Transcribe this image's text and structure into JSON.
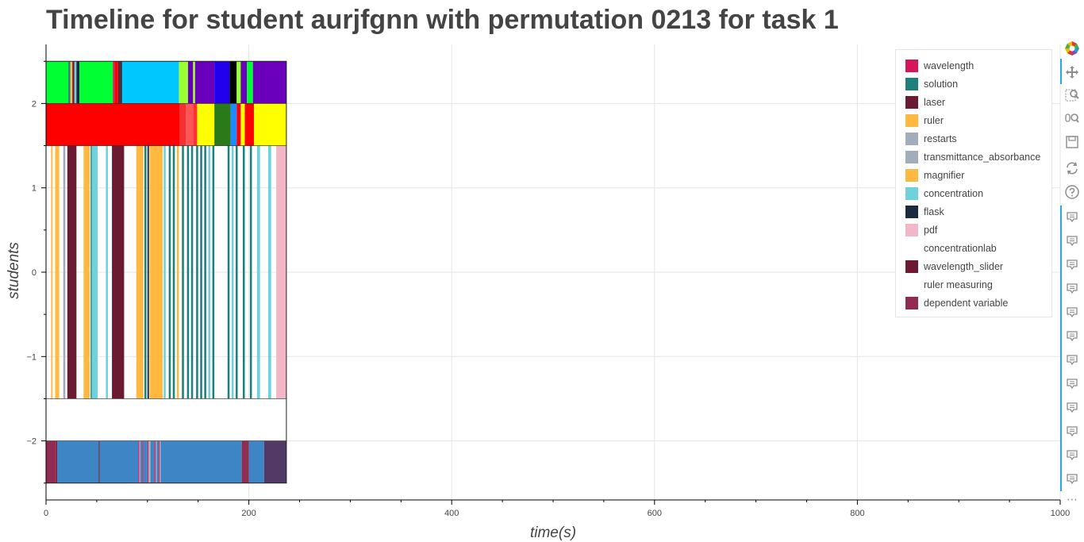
{
  "chart_data": {
    "type": "timeline",
    "title": "Timeline for student aurjfgnn with permutation 0213 for task 1",
    "xlabel": "time(s)",
    "ylabel": "students",
    "xlim": [
      0,
      1000
    ],
    "ylim": [
      -2.7,
      2.7
    ],
    "x_ticks": [
      0,
      200,
      400,
      600,
      800,
      1000
    ],
    "y_ticks": [
      -2,
      -1,
      0,
      1,
      2
    ],
    "y_tick_labels": [
      "−2",
      "−1",
      "0",
      "1",
      "2"
    ],
    "x_tick_labels": [
      "0",
      "200",
      "400",
      "600",
      "800",
      "1000"
    ],
    "grid": true,
    "legend_position": "top-right",
    "legend": [
      {
        "label": "wavelength",
        "color": "#d6165a"
      },
      {
        "label": "solution",
        "color": "#1f7f7a"
      },
      {
        "label": "laser",
        "color": "#6a1b32"
      },
      {
        "label": "ruler",
        "color": "#ffb840"
      },
      {
        "label": "restarts",
        "color": "#a1adba"
      },
      {
        "label": "transmittance_absorbance",
        "color": "#a1adba"
      },
      {
        "label": "magnifier",
        "color": "#ffb840"
      },
      {
        "label": "concentration",
        "color": "#70d0dc"
      },
      {
        "label": "flask",
        "color": "#1a2b40"
      },
      {
        "label": "pdf",
        "color": "#f1b7c6"
      },
      {
        "label": "concentrationlab",
        "color": "#ffffff"
      },
      {
        "label": "wavelength_slider",
        "color": "#6a1b32"
      },
      {
        "label": "ruler measuring",
        "color": "#ffffff"
      },
      {
        "label": "dependent variable",
        "color": "#912b52"
      }
    ],
    "rows": [
      {
        "y_center": 2.25,
        "height": 0.5,
        "segments": [
          [
            0,
            22,
            "#00ff33"
          ],
          [
            22,
            24,
            "#1f7f7a"
          ],
          [
            24,
            26,
            "#ffb840"
          ],
          [
            26,
            28,
            "#6a1b32"
          ],
          [
            28,
            30,
            "#70d0dc"
          ],
          [
            30,
            33,
            "#1a2b40"
          ],
          [
            33,
            66,
            "#00ff33"
          ],
          [
            66,
            68,
            "#d6165a"
          ],
          [
            68,
            71,
            "#ff0000"
          ],
          [
            71,
            73,
            "#6a1b32"
          ],
          [
            73,
            75,
            "#1a2b40"
          ],
          [
            75,
            131,
            "#00c8ff"
          ],
          [
            131,
            140,
            "#99ff33"
          ],
          [
            140,
            145,
            "#6a00bb"
          ],
          [
            145,
            147,
            "#99ff33"
          ],
          [
            147,
            166,
            "#6a00bb"
          ],
          [
            166,
            181,
            "#2200ee"
          ],
          [
            181,
            188,
            "#000000"
          ],
          [
            188,
            192,
            "#99ff33"
          ],
          [
            192,
            198,
            "#6a00bb"
          ],
          [
            198,
            204,
            "#00ff33"
          ],
          [
            204,
            237,
            "#6a00bb"
          ]
        ]
      },
      {
        "y_center": 1.75,
        "height": 0.5,
        "segments": [
          [
            0,
            132,
            "#ff0000"
          ],
          [
            132,
            138,
            "#f53030"
          ],
          [
            138,
            145,
            "#ff5555"
          ],
          [
            145,
            149,
            "#ff3030"
          ],
          [
            149,
            166,
            "#ffff00"
          ],
          [
            166,
            182,
            "#2a7a1a"
          ],
          [
            182,
            188,
            "#2288ff"
          ],
          [
            188,
            192,
            "#ff0000"
          ],
          [
            192,
            196,
            "#ffff00"
          ],
          [
            196,
            205,
            "#ff0000"
          ],
          [
            205,
            237,
            "#ffff00"
          ]
        ]
      },
      {
        "y_center": 0,
        "height": 3,
        "segments": [
          [
            5,
            6.5,
            "#ffb840"
          ],
          [
            9,
            13,
            "#ffb840"
          ],
          [
            17,
            19,
            "#a1adba"
          ],
          [
            21,
            30,
            "#6a1b32"
          ],
          [
            37,
            43,
            "#ffb840"
          ],
          [
            44,
            45,
            "#1f7f7a"
          ],
          [
            45,
            51,
            "#70d0dc"
          ],
          [
            59,
            61,
            "#70d0dc"
          ],
          [
            65,
            77,
            "#6a1b32"
          ],
          [
            89,
            96,
            "#ffb840"
          ],
          [
            97,
            99,
            "#1f7f7a"
          ],
          [
            100,
            101.5,
            "#1a2b40"
          ],
          [
            102,
            115,
            "#ffb840"
          ],
          [
            116,
            118,
            "#70d0dc"
          ],
          [
            121,
            123,
            "#1f7f7a"
          ],
          [
            125,
            127,
            "#1f7f7a"
          ],
          [
            129,
            131,
            "#ffb840"
          ],
          [
            134,
            136,
            "#1f7f7a"
          ],
          [
            139,
            141,
            "#1f7f7a"
          ],
          [
            143,
            145,
            "#1f7f7a"
          ],
          [
            148,
            150,
            "#1f7f7a"
          ],
          [
            152,
            154,
            "#1f7f7a"
          ],
          [
            156,
            158,
            "#1f7f7a"
          ],
          [
            160,
            162,
            "#70d0dc"
          ],
          [
            164,
            166,
            "#1f7f7a"
          ],
          [
            179,
            181,
            "#1f7f7a"
          ],
          [
            183,
            185,
            "#70d0dc"
          ],
          [
            187,
            189,
            "#1f7f7a"
          ],
          [
            194,
            196,
            "#1f7f7a"
          ],
          [
            201,
            203,
            "#1f7f7a"
          ],
          [
            208,
            211,
            "#70d0dc"
          ],
          [
            219,
            222,
            "#70d0dc"
          ],
          [
            227,
            237,
            "#f1b7c6"
          ]
        ]
      },
      {
        "y_center": -1.75,
        "height": 0.5,
        "segments": [
          [
            0,
            237,
            "#ffffff"
          ]
        ]
      },
      {
        "y_center": -2.25,
        "height": 0.5,
        "segments": [
          [
            0,
            10,
            "#912b52"
          ],
          [
            10,
            11,
            "#6a1b32"
          ],
          [
            11,
            52,
            "#3e85c6"
          ],
          [
            52,
            53,
            "#6a1b32"
          ],
          [
            53,
            91,
            "#3e85c6"
          ],
          [
            91,
            92,
            "#d6165a"
          ],
          [
            92,
            93,
            "#a1adba"
          ],
          [
            93,
            95,
            "#3e85c6"
          ],
          [
            95,
            96,
            "#d6165a"
          ],
          [
            96,
            100,
            "#3e85c6"
          ],
          [
            100,
            101,
            "#d6165a"
          ],
          [
            101,
            103,
            "#a1adba"
          ],
          [
            103,
            107,
            "#3e85c6"
          ],
          [
            107,
            108,
            "#d6165a"
          ],
          [
            108,
            109,
            "#a1adba"
          ],
          [
            109,
            111,
            "#3e85c6"
          ],
          [
            111,
            112,
            "#d6165a"
          ],
          [
            112,
            113,
            "#a1adba"
          ],
          [
            113,
            193,
            "#3e85c6"
          ],
          [
            193,
            200,
            "#912b52"
          ],
          [
            200,
            215,
            "#3e85c6"
          ],
          [
            215,
            237,
            "#533a66"
          ]
        ]
      }
    ]
  },
  "toolbar": {
    "items": [
      {
        "icon": "bokeh-logo-icon"
      },
      {
        "icon": "pan-icon"
      },
      {
        "icon": "box-zoom-icon"
      },
      {
        "icon": "wheel-zoom-icon"
      },
      {
        "icon": "save-icon"
      },
      {
        "icon": "reset-icon"
      },
      {
        "icon": "help-icon"
      },
      {
        "icon": "hover-icon",
        "count": 12
      }
    ],
    "more_label": "⋯"
  }
}
